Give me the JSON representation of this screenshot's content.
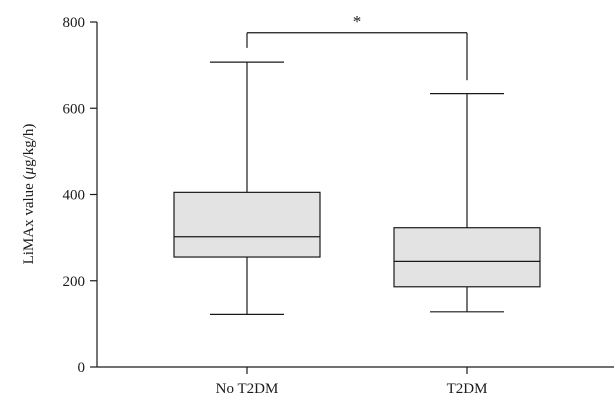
{
  "chart_data": {
    "type": "boxplot",
    "ylabel_prefix": "LiMAx value (",
    "ylabel_unit_mu": "μ",
    "ylabel_suffix": "g/kg/h)",
    "ylim": [
      0,
      800
    ],
    "yticks": [
      0,
      200,
      400,
      600,
      800
    ],
    "grid": false,
    "categories": [
      "No T2DM",
      "T2DM"
    ],
    "boxes": [
      {
        "category": "No T2DM",
        "min": 122,
        "q1": 255,
        "median": 302,
        "q3": 405,
        "max": 707
      },
      {
        "category": "T2DM",
        "min": 128,
        "q1": 186,
        "median": 245,
        "q3": 323,
        "max": 634
      }
    ],
    "significance": {
      "between": [
        "No T2DM",
        "T2DM"
      ],
      "label": "*",
      "y": 775,
      "drop_left": 740,
      "drop_right": 665
    },
    "colors": {
      "box_fill": "#e3e3e3",
      "line": "#1a1a1a"
    }
  }
}
